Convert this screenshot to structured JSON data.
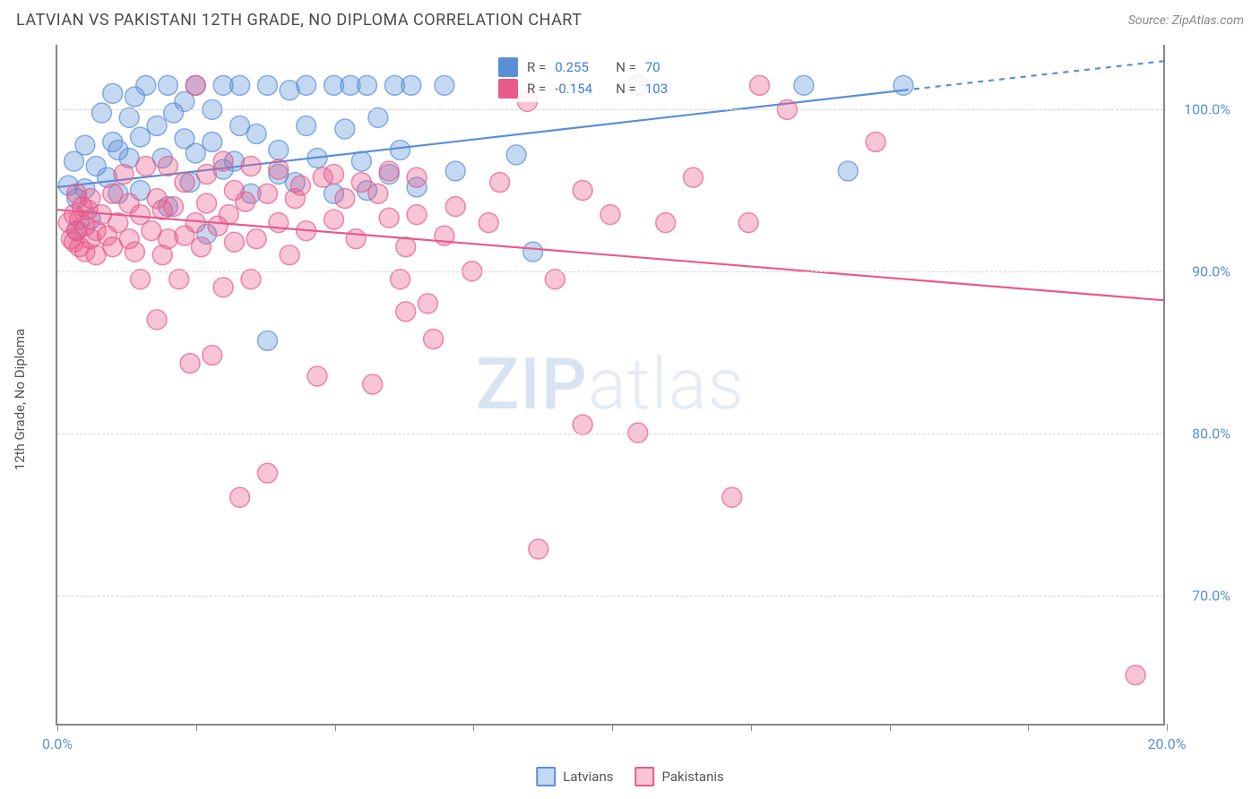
{
  "title": "LATVIAN VS PAKISTANI 12TH GRADE, NO DIPLOMA CORRELATION CHART",
  "source": "Source: ZipAtlas.com",
  "y_axis_label": "12th Grade, No Diploma",
  "watermark_bold": "ZIP",
  "watermark_rest": "atlas",
  "chart": {
    "type": "scatter",
    "xlim": [
      0,
      20
    ],
    "ylim": [
      62,
      104
    ],
    "x_ticks": [
      0,
      2.5,
      5,
      7.5,
      10,
      12.5,
      15,
      17.5,
      20
    ],
    "x_tick_labels": {
      "0": "0.0%",
      "20": "20.0%"
    },
    "y_gridlines": [
      70,
      80,
      90,
      100
    ],
    "y_tick_labels": {
      "70": "70.0%",
      "80": "80.0%",
      "90": "90.0%",
      "100": "100.0%"
    },
    "grid_color": "#d5d5d5",
    "axis_color": "#888888",
    "tick_label_color": "#5a8fd8",
    "marker_radius": 11,
    "marker_fill_opacity": 0.35,
    "marker_stroke_opacity": 0.7,
    "line_width": 2.2,
    "series": [
      {
        "name": "Latvians",
        "color": "#5a8fd8",
        "R": "0.255",
        "N": "70",
        "regression": {
          "x1": 0,
          "y1": 95.2,
          "x2": 15.3,
          "y2": 101.2,
          "x_dash_to": 20,
          "y_dash_to": 103
        },
        "points": [
          [
            0.2,
            95.3
          ],
          [
            0.3,
            96.8
          ],
          [
            0.35,
            94.5
          ],
          [
            0.35,
            92.5
          ],
          [
            0.5,
            95.1
          ],
          [
            0.5,
            97.8
          ],
          [
            0.6,
            93.2
          ],
          [
            0.7,
            96.5
          ],
          [
            0.8,
            99.8
          ],
          [
            0.9,
            95.8
          ],
          [
            1.0,
            98.0
          ],
          [
            1.0,
            101.0
          ],
          [
            1.1,
            97.5
          ],
          [
            1.1,
            94.8
          ],
          [
            1.3,
            99.5
          ],
          [
            1.3,
            97.0
          ],
          [
            1.4,
            100.8
          ],
          [
            1.5,
            98.3
          ],
          [
            1.5,
            95.0
          ],
          [
            1.6,
            101.5
          ],
          [
            1.8,
            99.0
          ],
          [
            1.9,
            97.0
          ],
          [
            2.0,
            101.5
          ],
          [
            2.0,
            94.0
          ],
          [
            2.1,
            99.8
          ],
          [
            2.3,
            100.5
          ],
          [
            2.3,
            98.2
          ],
          [
            2.4,
            95.5
          ],
          [
            2.5,
            101.5
          ],
          [
            2.5,
            97.3
          ],
          [
            2.7,
            92.3
          ],
          [
            2.8,
            100.0
          ],
          [
            2.8,
            98.0
          ],
          [
            3.0,
            101.5
          ],
          [
            3.0,
            96.3
          ],
          [
            3.2,
            96.8
          ],
          [
            3.3,
            99.0
          ],
          [
            3.3,
            101.5
          ],
          [
            3.5,
            94.8
          ],
          [
            3.6,
            98.5
          ],
          [
            3.8,
            101.5
          ],
          [
            3.8,
            85.7
          ],
          [
            4.0,
            97.5
          ],
          [
            4.0,
            96.0
          ],
          [
            4.2,
            101.2
          ],
          [
            4.3,
            95.5
          ],
          [
            4.5,
            99.0
          ],
          [
            4.5,
            101.5
          ],
          [
            4.7,
            97.0
          ],
          [
            5.0,
            101.5
          ],
          [
            5.0,
            94.8
          ],
          [
            5.2,
            98.8
          ],
          [
            5.3,
            101.5
          ],
          [
            5.5,
            96.8
          ],
          [
            5.6,
            101.5
          ],
          [
            5.6,
            95.0
          ],
          [
            5.8,
            99.5
          ],
          [
            6.0,
            96.0
          ],
          [
            6.1,
            101.5
          ],
          [
            6.2,
            97.5
          ],
          [
            6.4,
            101.5
          ],
          [
            6.5,
            95.2
          ],
          [
            7.0,
            101.5
          ],
          [
            7.2,
            96.2
          ],
          [
            8.3,
            97.2
          ],
          [
            8.6,
            91.2
          ],
          [
            10.5,
            101.5
          ],
          [
            13.5,
            101.5
          ],
          [
            14.3,
            96.2
          ],
          [
            15.3,
            101.5
          ]
        ]
      },
      {
        "name": "Pakistanis",
        "color": "#e85a8a",
        "R": "-0.154",
        "N": "103",
        "regression": {
          "x1": 0,
          "y1": 93.8,
          "x2": 20,
          "y2": 88.2
        },
        "points": [
          [
            0.2,
            93.0
          ],
          [
            0.25,
            92.0
          ],
          [
            0.3,
            93.5
          ],
          [
            0.3,
            91.8
          ],
          [
            0.35,
            94.8
          ],
          [
            0.35,
            92.5
          ],
          [
            0.4,
            93.2
          ],
          [
            0.4,
            91.5
          ],
          [
            0.45,
            94.0
          ],
          [
            0.5,
            92.8
          ],
          [
            0.5,
            91.2
          ],
          [
            0.55,
            93.8
          ],
          [
            0.6,
            92.0
          ],
          [
            0.6,
            94.5
          ],
          [
            0.7,
            92.5
          ],
          [
            0.7,
            91.0
          ],
          [
            0.8,
            93.5
          ],
          [
            0.9,
            92.2
          ],
          [
            1.0,
            94.8
          ],
          [
            1.0,
            91.5
          ],
          [
            1.1,
            93.0
          ],
          [
            1.2,
            96.0
          ],
          [
            1.3,
            92.0
          ],
          [
            1.3,
            94.2
          ],
          [
            1.4,
            91.2
          ],
          [
            1.5,
            93.5
          ],
          [
            1.5,
            89.5
          ],
          [
            1.6,
            96.5
          ],
          [
            1.7,
            92.5
          ],
          [
            1.8,
            94.5
          ],
          [
            1.8,
            87.0
          ],
          [
            1.9,
            93.8
          ],
          [
            1.9,
            91.0
          ],
          [
            2.0,
            96.5
          ],
          [
            2.0,
            92.0
          ],
          [
            2.1,
            94.0
          ],
          [
            2.2,
            89.5
          ],
          [
            2.3,
            92.2
          ],
          [
            2.3,
            95.5
          ],
          [
            2.4,
            84.3
          ],
          [
            2.5,
            101.5
          ],
          [
            2.5,
            93.0
          ],
          [
            2.6,
            91.5
          ],
          [
            2.7,
            94.2
          ],
          [
            2.7,
            96.0
          ],
          [
            2.8,
            84.8
          ],
          [
            2.9,
            92.8
          ],
          [
            3.0,
            96.8
          ],
          [
            3.0,
            89.0
          ],
          [
            3.1,
            93.5
          ],
          [
            3.2,
            95.0
          ],
          [
            3.2,
            91.8
          ],
          [
            3.3,
            76.0
          ],
          [
            3.4,
            94.3
          ],
          [
            3.5,
            96.5
          ],
          [
            3.5,
            89.5
          ],
          [
            3.6,
            92.0
          ],
          [
            3.8,
            94.8
          ],
          [
            3.8,
            77.5
          ],
          [
            4.0,
            93.0
          ],
          [
            4.0,
            96.3
          ],
          [
            4.2,
            91.0
          ],
          [
            4.3,
            94.5
          ],
          [
            4.4,
            95.3
          ],
          [
            4.5,
            92.5
          ],
          [
            4.7,
            83.5
          ],
          [
            4.8,
            95.8
          ],
          [
            5.0,
            93.2
          ],
          [
            5.0,
            96.0
          ],
          [
            5.2,
            94.5
          ],
          [
            5.4,
            92.0
          ],
          [
            5.5,
            95.5
          ],
          [
            5.7,
            83.0
          ],
          [
            5.8,
            94.8
          ],
          [
            6.0,
            93.3
          ],
          [
            6.0,
            96.2
          ],
          [
            6.2,
            89.5
          ],
          [
            6.3,
            91.5
          ],
          [
            6.3,
            87.5
          ],
          [
            6.5,
            93.5
          ],
          [
            6.5,
            95.8
          ],
          [
            6.7,
            88.0
          ],
          [
            6.8,
            85.8
          ],
          [
            7.0,
            92.2
          ],
          [
            7.2,
            94.0
          ],
          [
            7.5,
            90.0
          ],
          [
            7.8,
            93.0
          ],
          [
            8.0,
            95.5
          ],
          [
            8.5,
            100.5
          ],
          [
            8.7,
            72.8
          ],
          [
            9.0,
            89.5
          ],
          [
            9.5,
            95.0
          ],
          [
            9.5,
            80.5
          ],
          [
            10.0,
            93.5
          ],
          [
            10.5,
            80.0
          ],
          [
            11.0,
            93.0
          ],
          [
            11.5,
            95.8
          ],
          [
            12.2,
            76.0
          ],
          [
            12.5,
            93.0
          ],
          [
            12.7,
            101.5
          ],
          [
            13.2,
            100.0
          ],
          [
            14.8,
            98.0
          ],
          [
            19.5,
            65.0
          ]
        ]
      }
    ]
  },
  "legend": {
    "items": [
      {
        "label": "Latvians",
        "color": "#5a8fd8",
        "fill": "rgba(90,143,216,0.35)"
      },
      {
        "label": "Pakistanis",
        "color": "#e85a8a",
        "fill": "rgba(232,90,138,0.35)"
      }
    ]
  },
  "stats_labels": {
    "R": "R =",
    "N": "N ="
  }
}
